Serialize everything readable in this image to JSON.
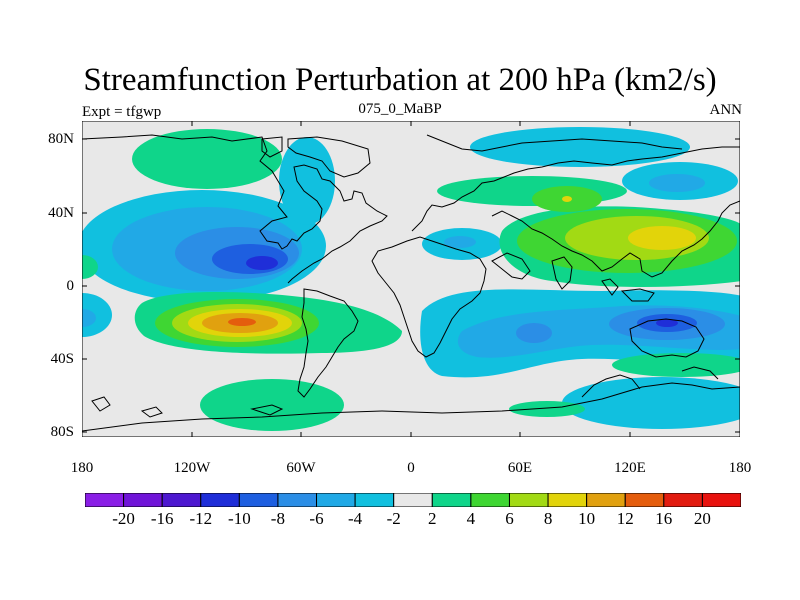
{
  "title": "Streamfunction Perturbation at 200 hPa (km2/s)",
  "left_label": "Expt = tfgwp",
  "center_label": "075_0_MaBP",
  "right_label": "ANN",
  "x_ticks": [
    "180",
    "120W",
    "60W",
    "0",
    "60E",
    "120E",
    "180"
  ],
  "y_ticks": [
    "80N",
    "40N",
    "0",
    "40S",
    "80S"
  ],
  "colorbar": {
    "labels": [
      "-20",
      "-16",
      "-12",
      "-10",
      "-8",
      "-6",
      "-4",
      "-2",
      "2",
      "4",
      "6",
      "8",
      "10",
      "12",
      "16",
      "20"
    ],
    "colors": [
      "#8a1ee6",
      "#7014d8",
      "#4d18d0",
      "#1f2ed8",
      "#1e5fe0",
      "#2b8ee6",
      "#21a9e6",
      "#11c0df",
      "#e8e8e8",
      "#0fd58a",
      "#3fd633",
      "#a2da14",
      "#e2d40a",
      "#e1a10f",
      "#e45d0d",
      "#e21c10",
      "#e8120e"
    ]
  },
  "legend_text": "Expt = tfgwp"
}
